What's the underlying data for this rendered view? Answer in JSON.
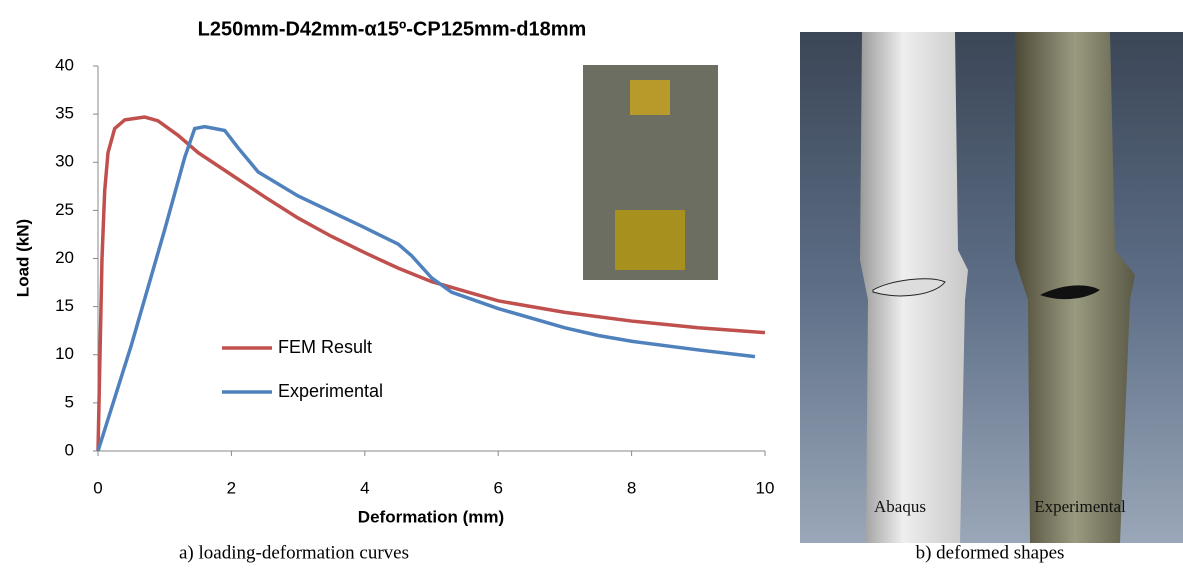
{
  "chart_data": {
    "type": "line",
    "title": "L250mm-D42mm-α15º-CP125mm-d18mm",
    "x_label": "Deformation (mm)",
    "y_label": "Load (kN)",
    "xlim": [
      0,
      10
    ],
    "ylim": [
      0,
      40
    ],
    "xticks": [
      0,
      2,
      4,
      6,
      8,
      10
    ],
    "yticks": [
      0,
      5,
      10,
      15,
      20,
      25,
      30,
      35,
      40
    ],
    "series": [
      {
        "name": "FEM Result",
        "color": "#c0504d",
        "x": [
          0,
          0.03,
          0.06,
          0.1,
          0.15,
          0.25,
          0.4,
          0.7,
          0.9,
          1.2,
          1.5,
          2,
          2.5,
          3,
          3.5,
          4,
          4.5,
          5,
          6,
          7,
          8,
          9,
          10
        ],
        "values": [
          0,
          10,
          20,
          27,
          31,
          33.5,
          34.4,
          34.7,
          34.3,
          32.8,
          31,
          28.7,
          26.4,
          24.2,
          22.3,
          20.6,
          19,
          17.6,
          15.6,
          14.4,
          13.5,
          12.8,
          12.3
        ]
      },
      {
        "name": "Experimental",
        "color": "#4f81bd",
        "x": [
          0,
          0.5,
          1,
          1.3,
          1.45,
          1.6,
          1.9,
          2.1,
          2.4,
          3,
          4,
          4.5,
          4.7,
          5,
          5.3,
          6,
          7,
          7.5,
          8,
          9,
          9.85
        ],
        "values": [
          0,
          11,
          23,
          30.5,
          33.5,
          33.7,
          33.3,
          31.5,
          29,
          26.5,
          23.2,
          21.5,
          20.3,
          18,
          16.5,
          14.8,
          12.8,
          12,
          11.4,
          10.5,
          9.8
        ]
      }
    ]
  },
  "captions": [
    "a) loading-deformation curves",
    "b) deformed shapes"
  ],
  "image_labels": [
    "Abaqus",
    "Experimental"
  ]
}
